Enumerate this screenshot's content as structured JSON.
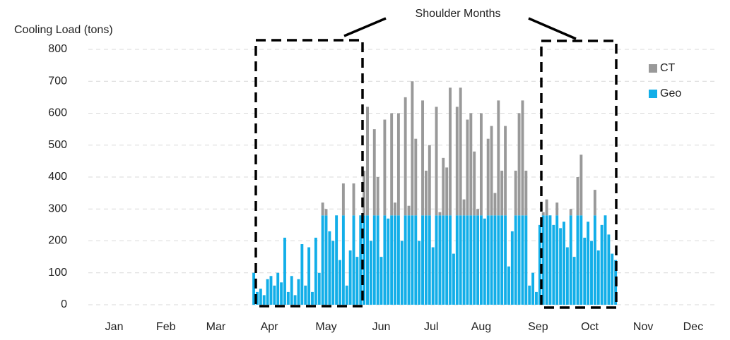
{
  "chart_data": {
    "type": "bar",
    "stacked": true,
    "y_label": "Cooling Load (tons)",
    "annotation": "Shoulder Months",
    "ylim": [
      0,
      800
    ],
    "yticks": [
      0,
      100,
      200,
      300,
      400,
      500,
      600,
      700,
      800
    ],
    "xlim": [
      0,
      365
    ],
    "xticks": [
      {
        "value": 15,
        "label": "Jan"
      },
      {
        "value": 45,
        "label": "Feb"
      },
      {
        "value": 74,
        "label": "Mar"
      },
      {
        "value": 105,
        "label": "Apr"
      },
      {
        "value": 138,
        "label": "May"
      },
      {
        "value": 170,
        "label": "Jun"
      },
      {
        "value": 199,
        "label": "Jul"
      },
      {
        "value": 228,
        "label": "Aug"
      },
      {
        "value": 261,
        "label": "Sep"
      },
      {
        "value": 291,
        "label": "Oct"
      },
      {
        "value": 322,
        "label": "Nov"
      },
      {
        "value": 351,
        "label": "Dec"
      }
    ],
    "grid": true,
    "legend": "right",
    "x": [
      96,
      98,
      100,
      102,
      104,
      106,
      108,
      110,
      112,
      114,
      116,
      118,
      120,
      122,
      124,
      126,
      128,
      130,
      132,
      134,
      136,
      138,
      140,
      142,
      144,
      146,
      148,
      150,
      152,
      154,
      156,
      158,
      160,
      162,
      164,
      166,
      168,
      170,
      172,
      174,
      176,
      178,
      180,
      182,
      184,
      186,
      188,
      190,
      192,
      194,
      196,
      198,
      200,
      202,
      204,
      206,
      208,
      210,
      212,
      214,
      216,
      218,
      220,
      222,
      224,
      226,
      228,
      230,
      232,
      234,
      236,
      238,
      240,
      242,
      244,
      246,
      248,
      250,
      252,
      254,
      256,
      258,
      260,
      262,
      264,
      266,
      268,
      270,
      272,
      274,
      276,
      278,
      280,
      282,
      284,
      286,
      288,
      290,
      292,
      294,
      296,
      298,
      300,
      302,
      304,
      306
    ],
    "series": [
      {
        "name": "Geo",
        "color": "#12aee8",
        "values": [
          100,
          40,
          50,
          30,
          80,
          90,
          60,
          100,
          70,
          210,
          40,
          90,
          30,
          80,
          190,
          60,
          180,
          40,
          210,
          100,
          280,
          280,
          230,
          200,
          280,
          140,
          280,
          60,
          170,
          280,
          150,
          280,
          280,
          280,
          200,
          280,
          280,
          150,
          280,
          270,
          280,
          280,
          280,
          200,
          280,
          280,
          280,
          280,
          200,
          280,
          280,
          280,
          180,
          280,
          280,
          280,
          280,
          280,
          160,
          280,
          280,
          280,
          280,
          280,
          280,
          280,
          280,
          270,
          280,
          280,
          280,
          280,
          280,
          280,
          120,
          230,
          280,
          280,
          280,
          280,
          60,
          100,
          40,
          250,
          280,
          280,
          280,
          250,
          280,
          240,
          260,
          180,
          280,
          150,
          280,
          280,
          210,
          260,
          200,
          280,
          170,
          250,
          280,
          220,
          160,
          140
        ]
      },
      {
        "name": "CT",
        "color": "#999999",
        "values": [
          0,
          0,
          0,
          0,
          0,
          0,
          0,
          0,
          0,
          0,
          0,
          0,
          0,
          0,
          0,
          0,
          0,
          0,
          0,
          0,
          40,
          20,
          0,
          0,
          0,
          0,
          100,
          0,
          0,
          100,
          0,
          0,
          140,
          340,
          0,
          270,
          120,
          0,
          300,
          0,
          320,
          40,
          320,
          0,
          370,
          30,
          420,
          240,
          0,
          360,
          140,
          220,
          0,
          340,
          10,
          180,
          150,
          400,
          0,
          340,
          400,
          50,
          300,
          320,
          200,
          20,
          320,
          0,
          240,
          280,
          70,
          360,
          140,
          280,
          0,
          0,
          140,
          320,
          360,
          140,
          0,
          0,
          0,
          0,
          10,
          50,
          0,
          0,
          40,
          0,
          0,
          0,
          20,
          0,
          120,
          190,
          0,
          0,
          0,
          80,
          0,
          0,
          0,
          0,
          0,
          0
        ]
      }
    ]
  }
}
